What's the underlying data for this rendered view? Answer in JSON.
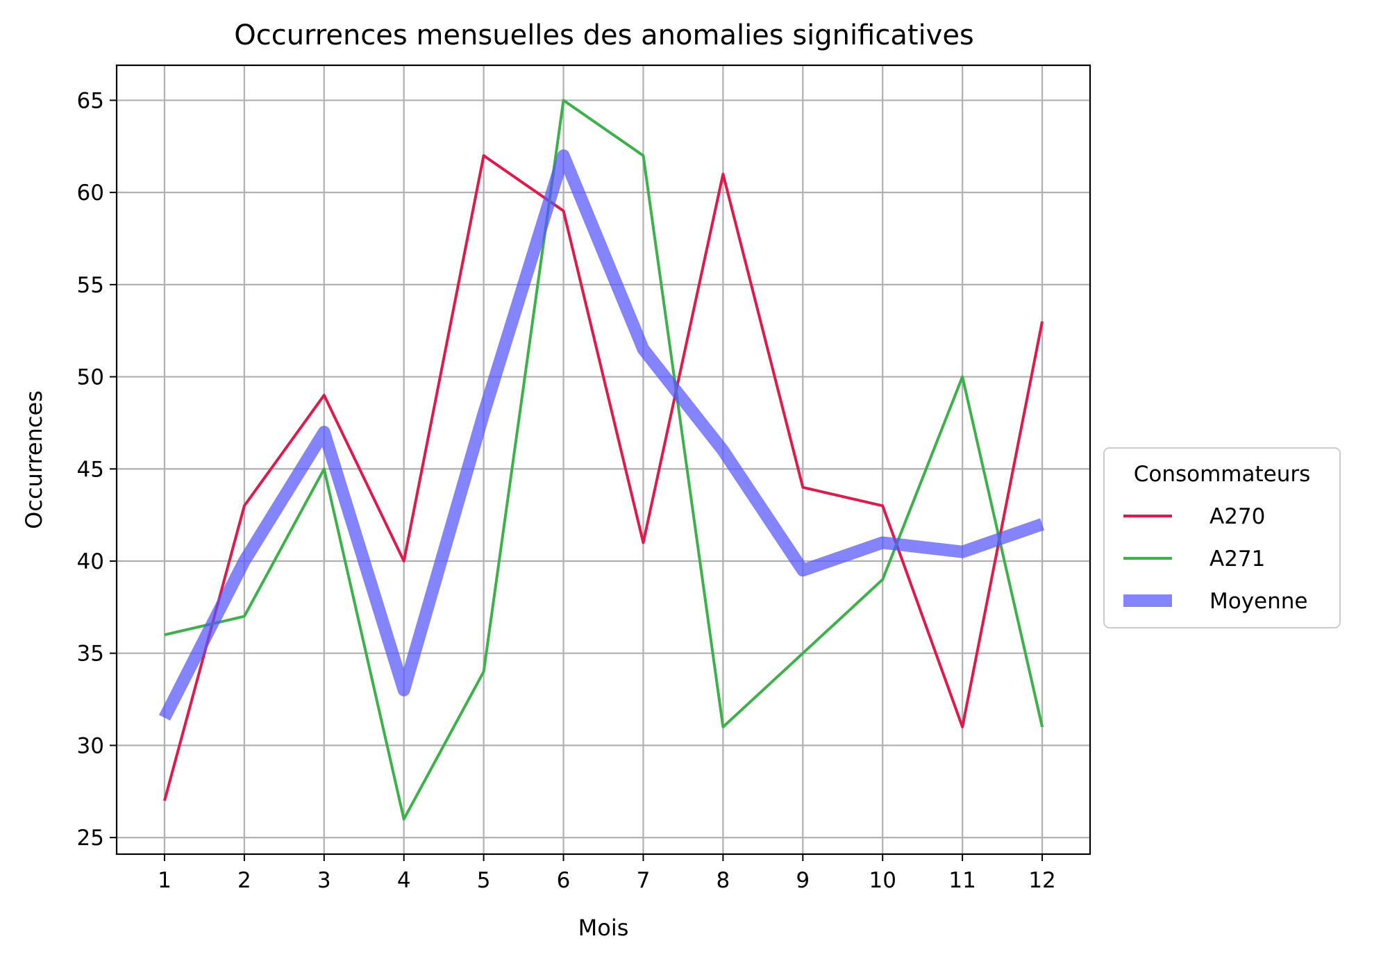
{
  "chart_data": {
    "type": "line",
    "title": "Occurrences mensuelles des anomalies significatives",
    "xlabel": "Mois",
    "ylabel": "Occurrences",
    "x": [
      1,
      2,
      3,
      4,
      5,
      6,
      7,
      8,
      9,
      10,
      11,
      12
    ],
    "xlim": [
      0.4,
      12.6
    ],
    "ylim": [
      24.1,
      66.9
    ],
    "yticks": [
      25,
      30,
      35,
      40,
      45,
      50,
      55,
      60,
      65
    ],
    "grid": true,
    "legend": {
      "title": "Consommateurs",
      "placement": "outside-right"
    },
    "series": [
      {
        "name": "A270",
        "color": "#e0194b",
        "values": [
          27,
          43,
          49,
          40,
          62,
          59,
          41,
          61,
          44,
          43,
          31,
          53
        ]
      },
      {
        "name": "A271",
        "color": "#3cb14a",
        "values": [
          36,
          37,
          45,
          26,
          34,
          65,
          62,
          31,
          35,
          39,
          50,
          31
        ]
      },
      {
        "name": "Moyenne",
        "color": "#5555ff",
        "style": "thick-semitransparent",
        "values": [
          31.5,
          40,
          47,
          33,
          48,
          62,
          51.5,
          46,
          39.5,
          41,
          40.5,
          42
        ]
      }
    ]
  }
}
